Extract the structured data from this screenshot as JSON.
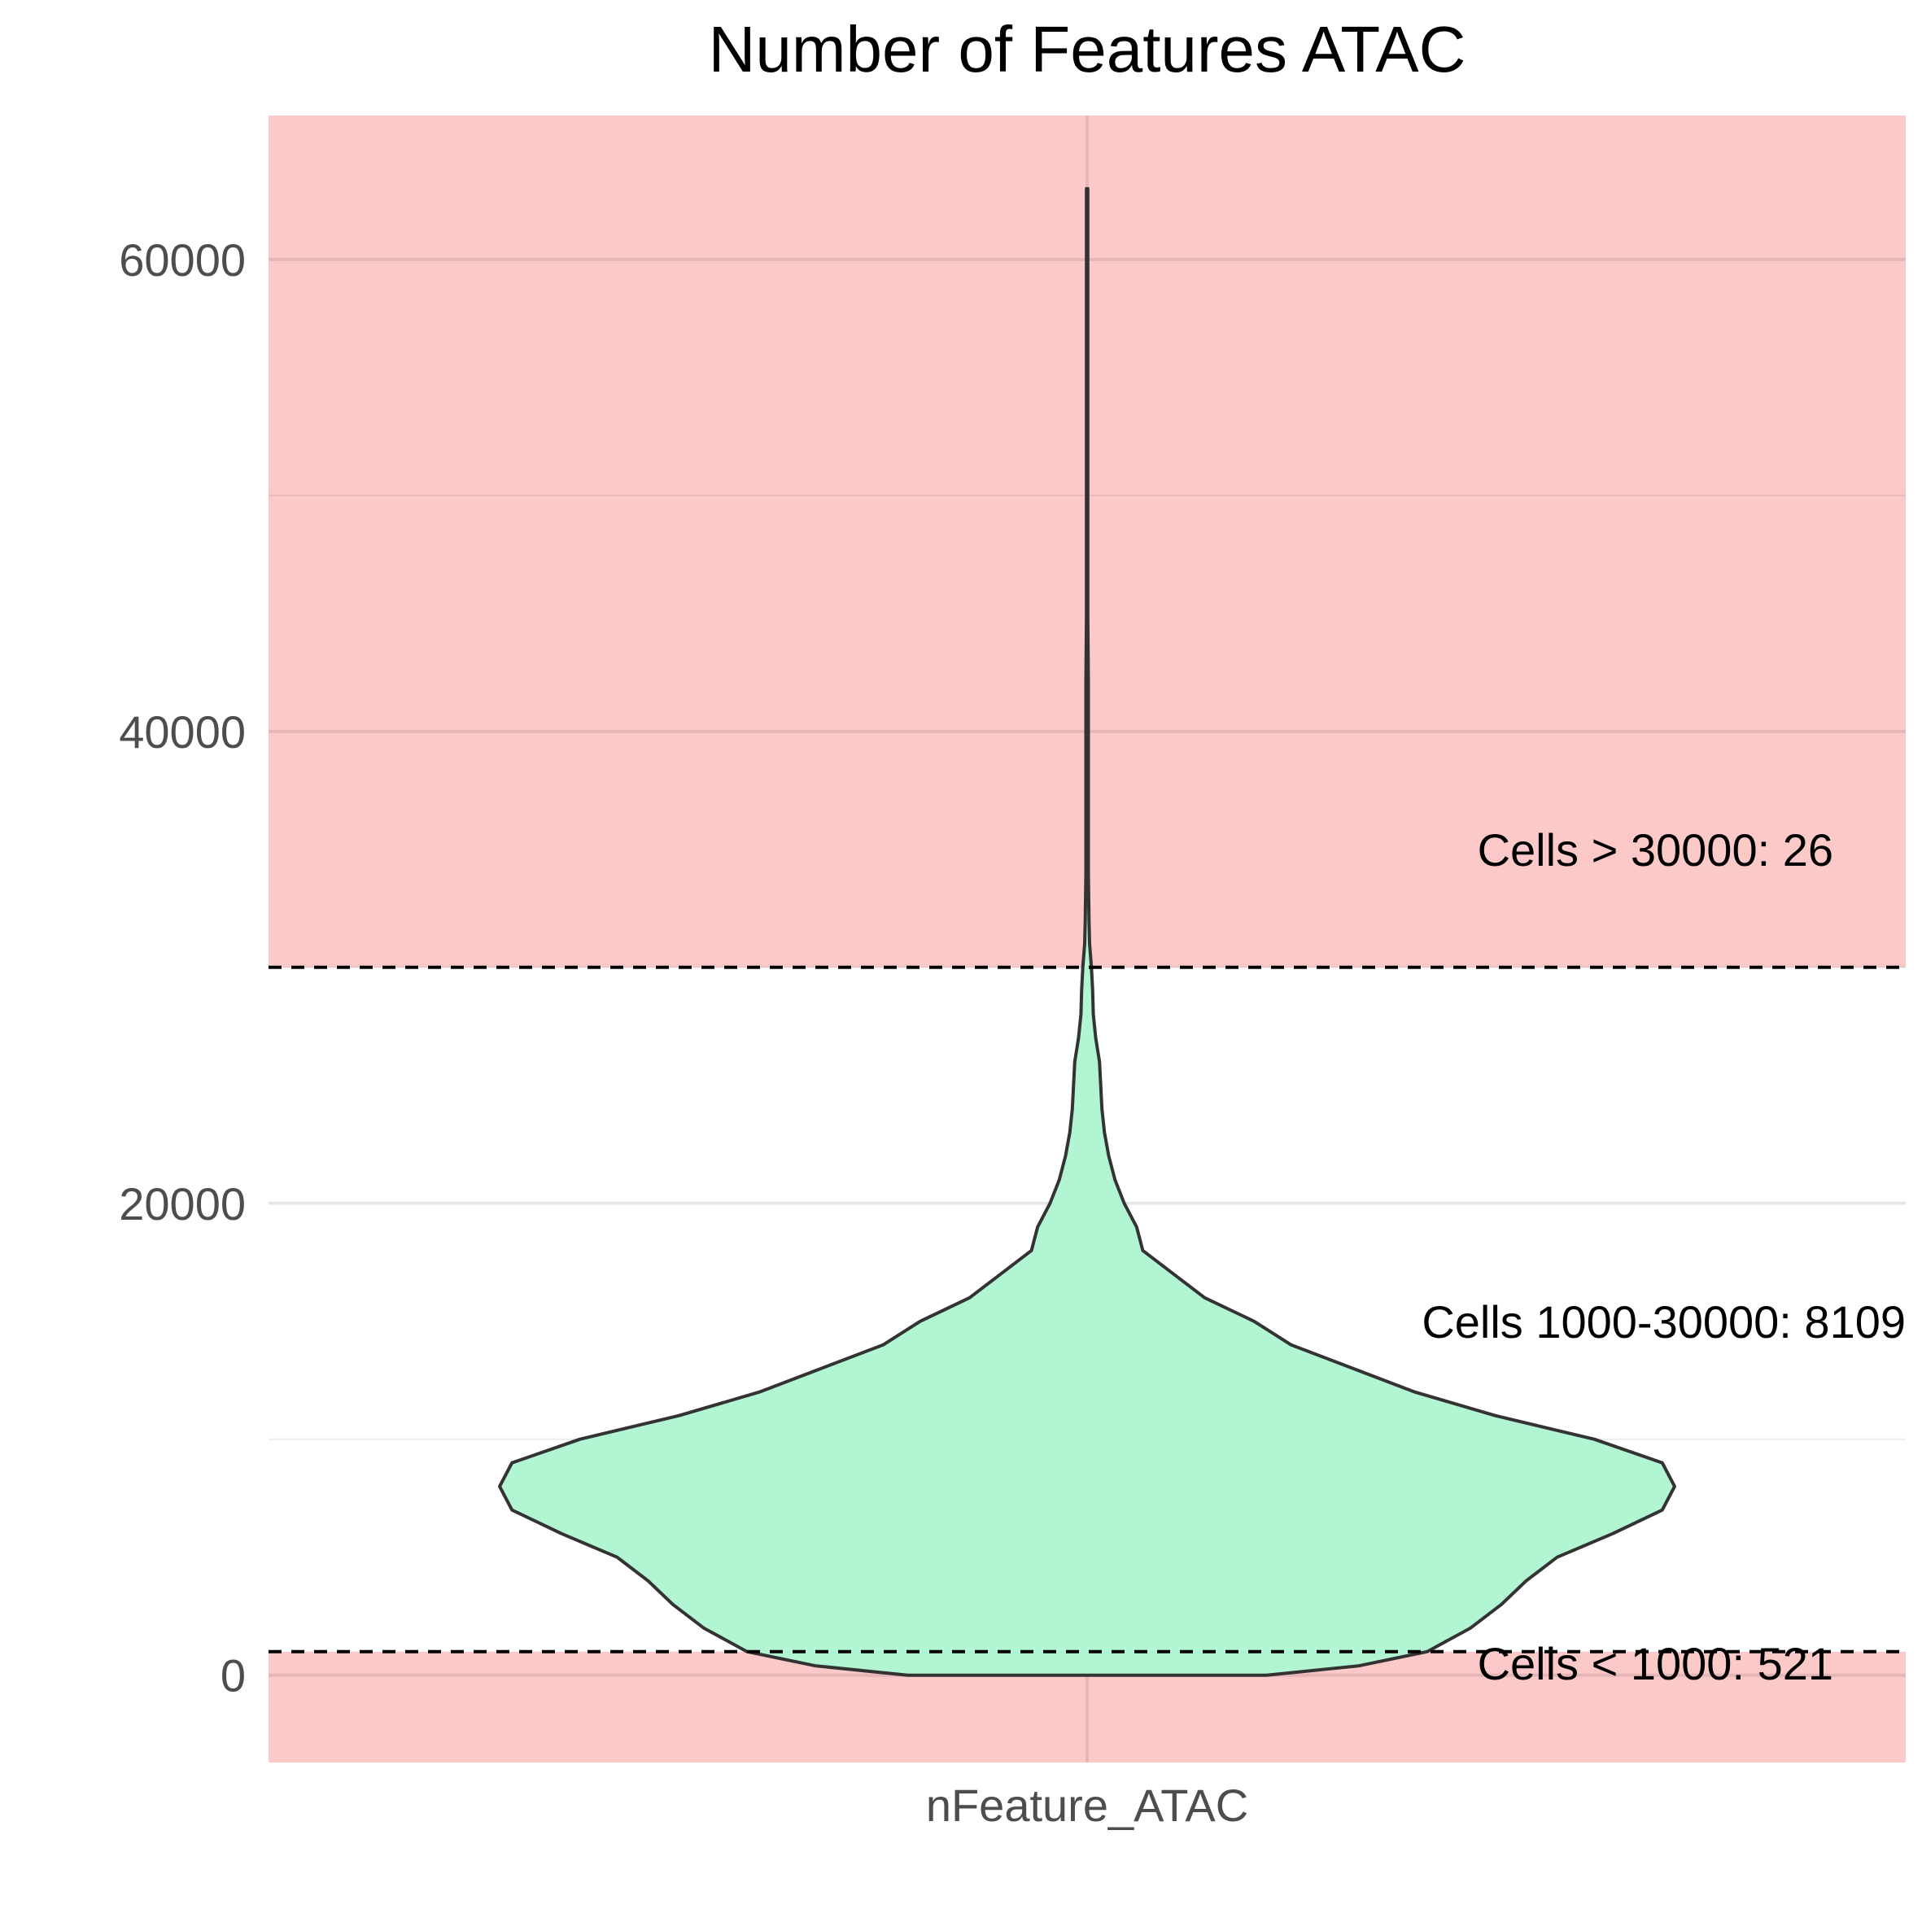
{
  "chart_data": {
    "type": "violin",
    "title": "Number of Features ATAC",
    "xlabel": "",
    "ylabel": "",
    "categories": [
      "nFeature_ATAC"
    ],
    "ylim": [
      -3700,
      66100
    ],
    "y_ticks": [
      0,
      20000,
      40000,
      60000
    ],
    "grid": true,
    "legend": "none",
    "thresholds": {
      "lower": 1000,
      "upper": 30000
    },
    "shaded_regions": [
      {
        "from": -3700,
        "to": 1000,
        "color": "#fcc9c9"
      },
      {
        "from": 30000,
        "to": 66100,
        "color": "#fcc9c9"
      }
    ],
    "violin": {
      "category": "nFeature_ATAC",
      "fill": "#b2f5d3",
      "outline": "#333333",
      "min": 0,
      "max": 63000,
      "profile": [
        [
          0,
          0.29
        ],
        [
          400,
          0.44
        ],
        [
          1000,
          0.55
        ],
        [
          2000,
          0.62
        ],
        [
          3000,
          0.67
        ],
        [
          4000,
          0.71
        ],
        [
          5000,
          0.76
        ],
        [
          6000,
          0.85
        ],
        [
          7000,
          0.93
        ],
        [
          8000,
          0.95
        ],
        [
          9000,
          0.93
        ],
        [
          10000,
          0.82
        ],
        [
          11000,
          0.66
        ],
        [
          12000,
          0.53
        ],
        [
          13000,
          0.43
        ],
        [
          14000,
          0.33
        ],
        [
          15000,
          0.27
        ],
        [
          16000,
          0.19
        ],
        [
          17000,
          0.14
        ],
        [
          18000,
          0.09
        ],
        [
          19000,
          0.08
        ],
        [
          20000,
          0.06
        ],
        [
          21000,
          0.045
        ],
        [
          22000,
          0.035
        ],
        [
          23000,
          0.028
        ],
        [
          24000,
          0.024
        ],
        [
          25000,
          0.022
        ],
        [
          26000,
          0.02
        ],
        [
          27000,
          0.014
        ],
        [
          28000,
          0.01
        ],
        [
          29000,
          0.009
        ],
        [
          30000,
          0.007
        ],
        [
          31000,
          0.004
        ],
        [
          32000,
          0.003
        ],
        [
          34000,
          0.002
        ],
        [
          36000,
          0.002
        ],
        [
          38000,
          0.002
        ],
        [
          40000,
          0.002
        ],
        [
          42000,
          0.002
        ],
        [
          45000,
          0.001
        ],
        [
          50000,
          0.001
        ],
        [
          55000,
          0.001
        ],
        [
          60000,
          0.001
        ],
        [
          63000,
          0.001
        ]
      ]
    },
    "annotations": [
      {
        "text": "Cells > 30000: 26",
        "y": 35000
      },
      {
        "text": "Cells 1000-30000: 8109",
        "y": 15000
      },
      {
        "text": "Cells < 1000: 521",
        "y": 500
      }
    ]
  }
}
